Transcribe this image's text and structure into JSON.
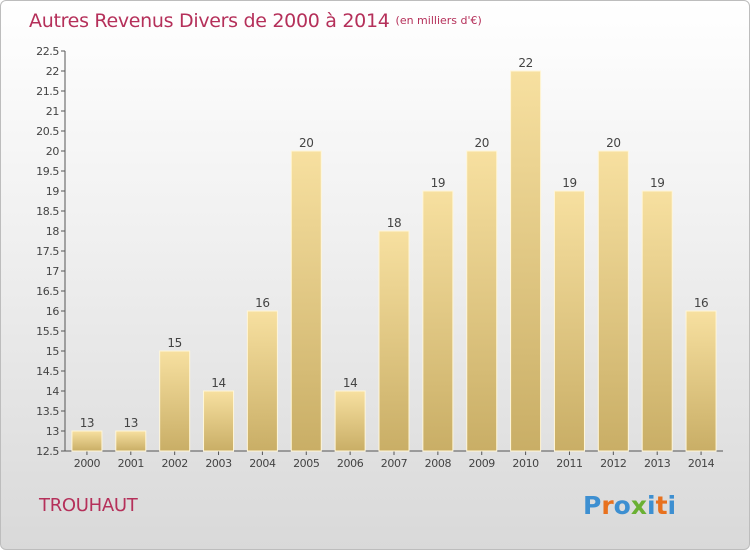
{
  "header": {
    "title": "Autres Revenus Divers de 2000 à 2014",
    "unit": "(en milliers d'€)"
  },
  "footer": {
    "commune": "TROUHAUT",
    "brand": "Proxiti"
  },
  "colors": {
    "title": "#b5305a",
    "bar_top": "#f7e0a0",
    "bar_bottom": "#c9ae66",
    "logo_letters": [
      "#3d8fd1",
      "#e8711e",
      "#3d8fd1",
      "#6ab033",
      "#3d8fd1",
      "#e8711e",
      "#3d8fd1"
    ]
  },
  "chart_data": {
    "type": "bar",
    "title": "Autres Revenus Divers de 2000 à 2014",
    "subtitle": "(en milliers d'€)",
    "categories": [
      "2000",
      "2001",
      "2002",
      "2003",
      "2004",
      "2005",
      "2006",
      "2007",
      "2008",
      "2009",
      "2010",
      "2011",
      "2012",
      "2013",
      "2014"
    ],
    "values": [
      13,
      13,
      15,
      14,
      16,
      20,
      14,
      18,
      19,
      20,
      22,
      19,
      20,
      19,
      16
    ],
    "ylim": [
      12.5,
      22.5
    ],
    "yticks": [
      12.5,
      13,
      13.5,
      14,
      14.5,
      15,
      15.5,
      16,
      16.5,
      17,
      17.5,
      18,
      18.5,
      19,
      19.5,
      20,
      20.5,
      21,
      21.5,
      22,
      22.5
    ],
    "xlabel": "",
    "ylabel": "",
    "grid": false,
    "data_labels": true
  }
}
